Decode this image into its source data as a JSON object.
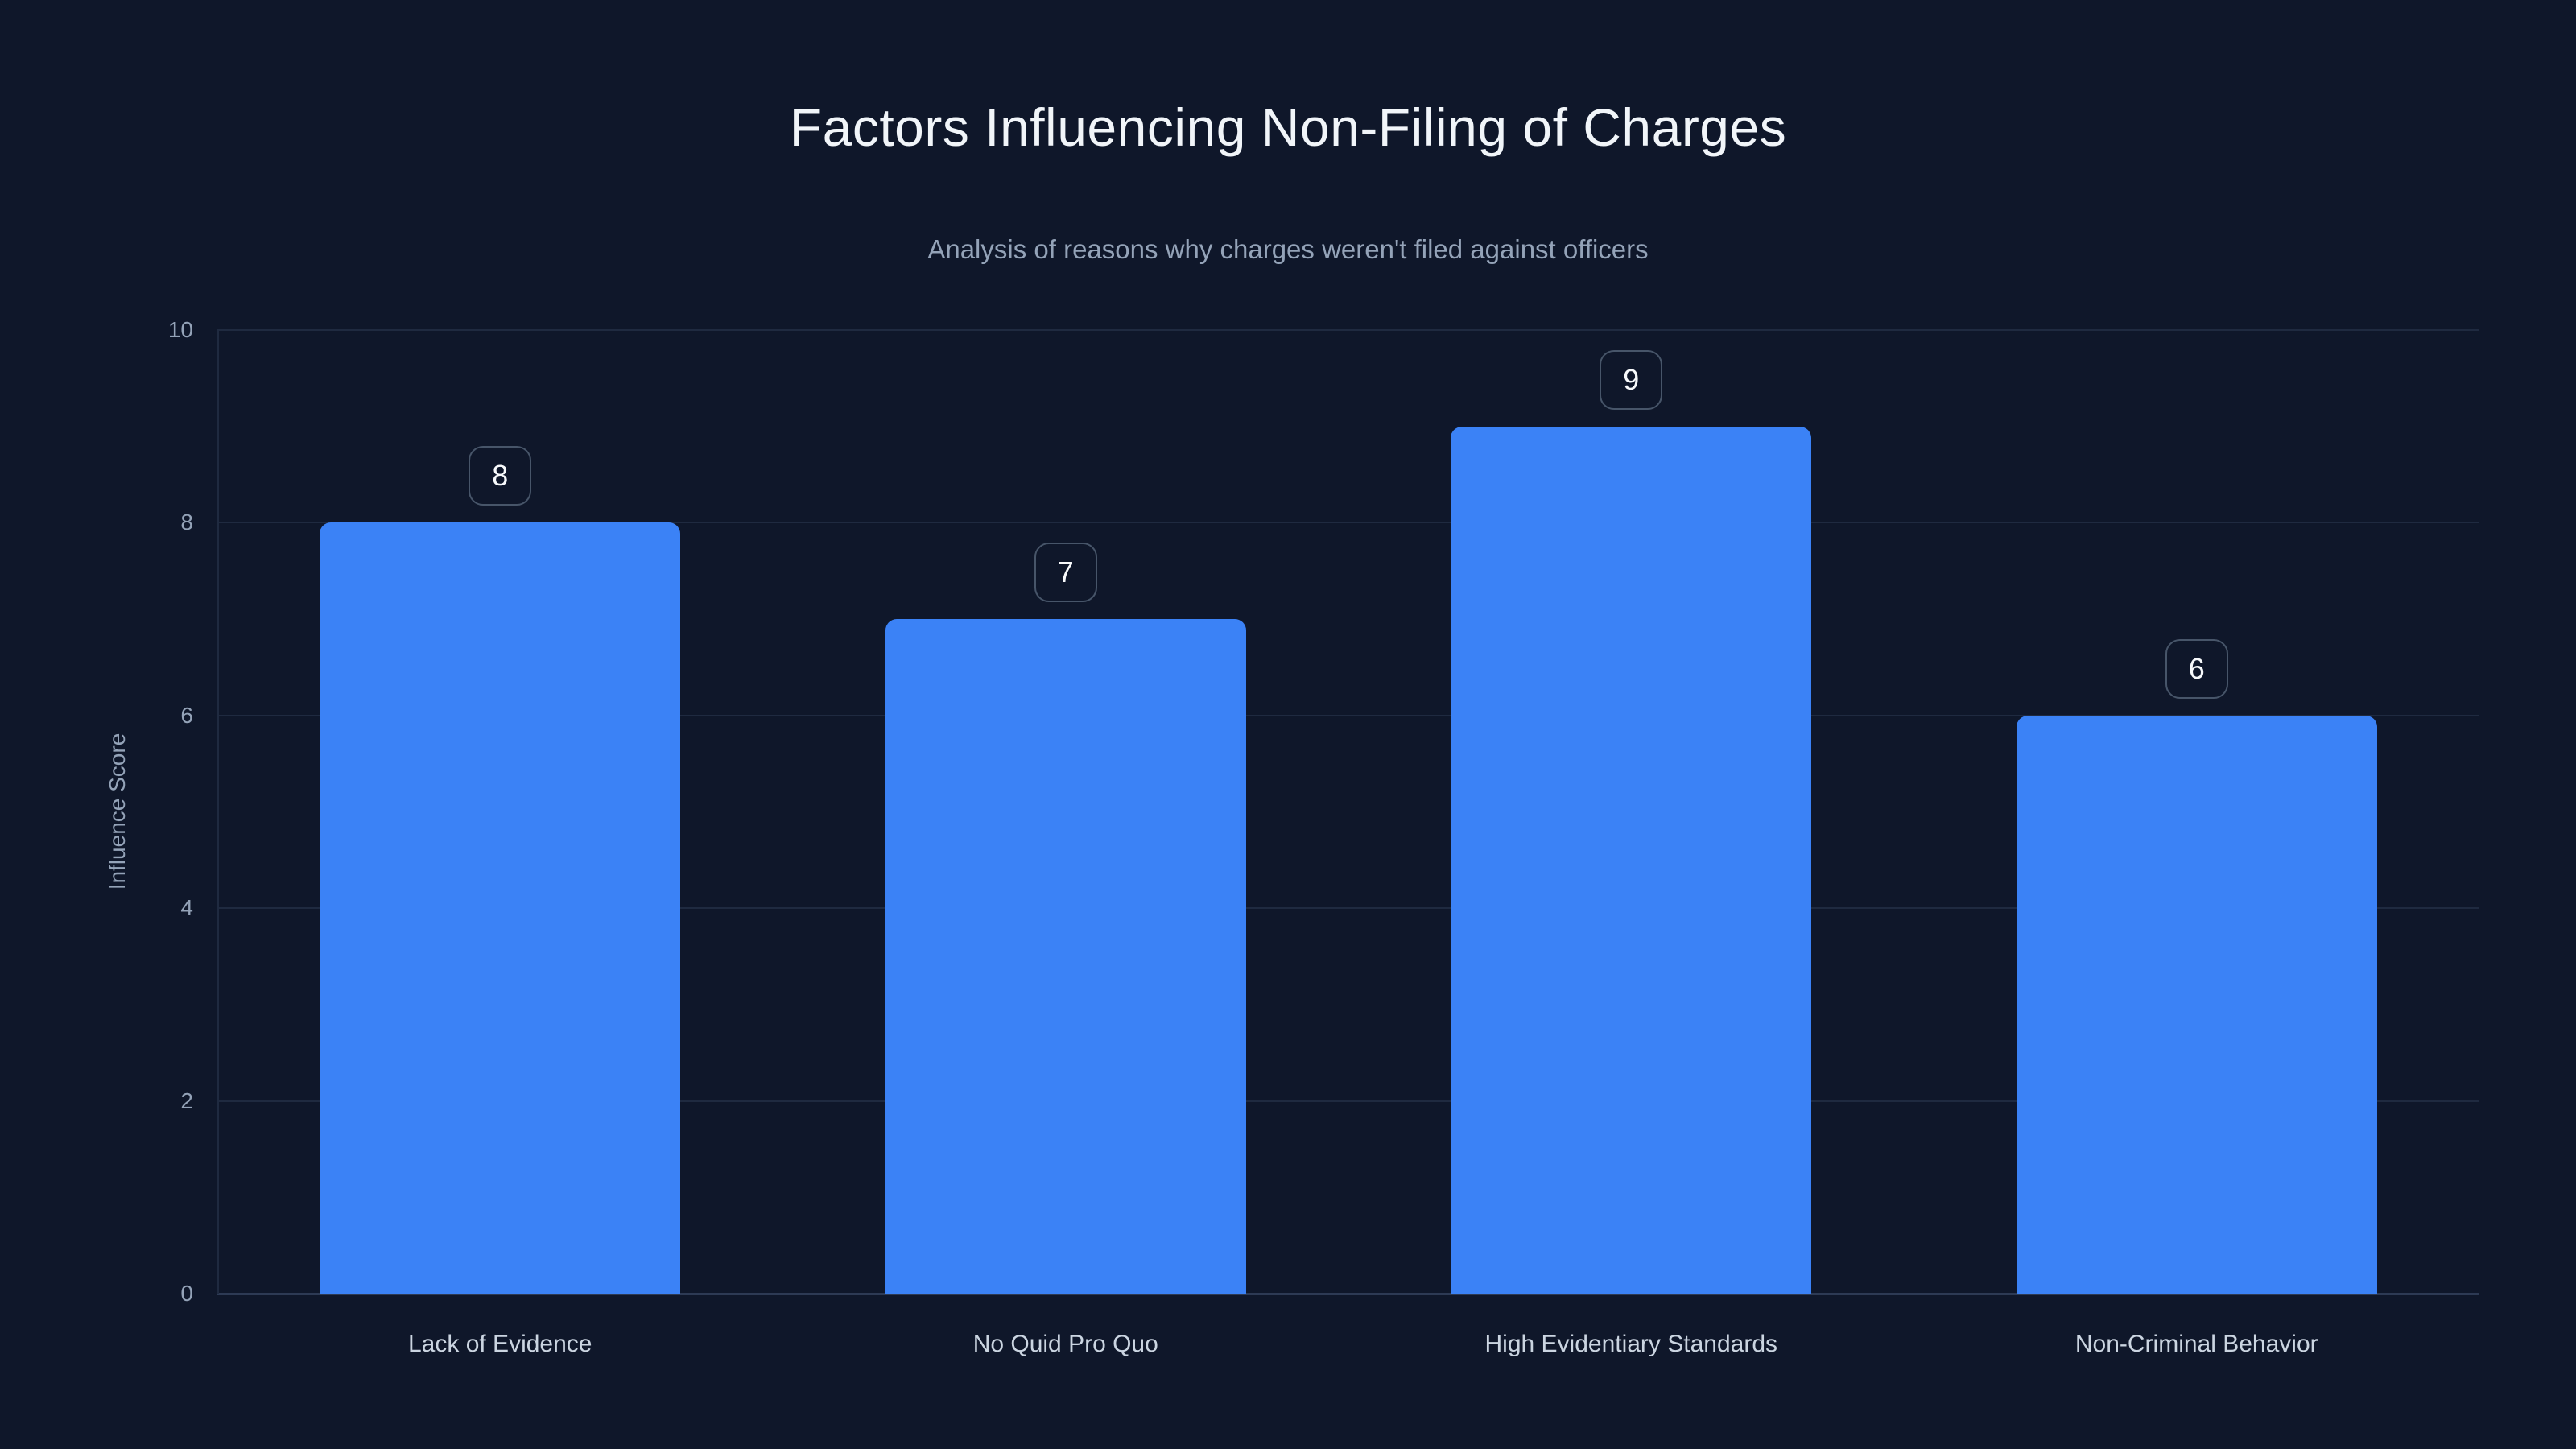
{
  "title": "Factors Influencing Non-Filing of Charges",
  "subtitle": "Analysis of reasons why charges weren't filed against officers",
  "colors": {
    "background": "#0f172a",
    "bar": "#3b82f6",
    "gridline": "#1f2a40",
    "axis_line": "#2d3a54",
    "title_text": "#f1f5f9",
    "subtitle_text": "#94a3b8",
    "tick_text": "#94a3b8",
    "category_text": "#cbd5e1",
    "badge_border": "#475569",
    "badge_text": "#f8fafc"
  },
  "chart_data": {
    "type": "bar",
    "title": "Factors Influencing Non-Filing of Charges",
    "subtitle": "Analysis of reasons why charges weren't filed against officers",
    "categories": [
      "Lack of Evidence",
      "No Quid Pro Quo",
      "High Evidentiary Standards",
      "Non-Criminal Behavior"
    ],
    "values": [
      8,
      7,
      9,
      6
    ],
    "value_labels": [
      "8",
      "7",
      "9",
      "6"
    ],
    "xlabel": "",
    "ylabel": "Influence Score",
    "ylim": [
      0,
      10
    ],
    "yticks": [
      0,
      2,
      4,
      6,
      8,
      10
    ],
    "grid": true,
    "legend": false
  }
}
